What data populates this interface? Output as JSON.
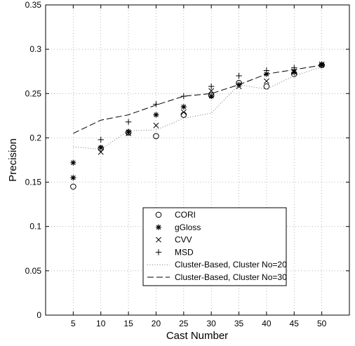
{
  "chart_data": {
    "type": "scatter",
    "title": "",
    "xlabel": "Cast Number",
    "ylabel": "Precision",
    "xlim": [
      0,
      55
    ],
    "ylim": [
      0,
      0.35
    ],
    "x_ticks": [
      5,
      10,
      15,
      20,
      25,
      30,
      35,
      40,
      45,
      50
    ],
    "x_tick_labels": [
      "5",
      "10",
      "15",
      "20",
      "25",
      "30",
      "35",
      "40",
      "45",
      "50"
    ],
    "y_ticks": [
      0,
      0.05,
      0.1,
      0.15,
      0.2,
      0.25,
      0.3,
      0.35
    ],
    "y_tick_labels": [
      "0",
      "0.05",
      "0.1",
      "0.15",
      "0.2",
      "0.25",
      "0.3",
      "0.35"
    ],
    "grid": true,
    "legend_position": "lower-center",
    "x": [
      5,
      10,
      15,
      20,
      25,
      30,
      35,
      40,
      45,
      50
    ],
    "series": [
      {
        "name": "CORI",
        "marker": "circle",
        "values": [
          0.145,
          0.188,
          0.206,
          0.202,
          0.226,
          0.248,
          0.262,
          0.258,
          0.272,
          0.282
        ]
      },
      {
        "name": "gGloss",
        "marker": "star",
        "values": [
          0.172,
          0.189,
          0.207,
          0.226,
          0.235,
          0.247,
          0.26,
          0.272,
          0.274,
          0.282
        ]
      },
      {
        "name": "gGloss",
        "marker": "star",
        "values": [
          0.155,
          null,
          null,
          null,
          null,
          null,
          null,
          null,
          null,
          null
        ]
      },
      {
        "name": "CVV",
        "marker": "x",
        "values": [
          null,
          0.184,
          0.205,
          0.214,
          0.229,
          0.253,
          0.258,
          0.264,
          0.275,
          0.283
        ]
      },
      {
        "name": "MSD",
        "marker": "plus",
        "values": [
          null,
          0.198,
          0.218,
          0.238,
          0.247,
          0.258,
          0.27,
          0.276,
          0.279,
          0.283
        ]
      },
      {
        "name": "Cluster-Based, Cluster No=20",
        "line": "dotted",
        "values": [
          0.19,
          0.187,
          0.208,
          0.209,
          0.222,
          0.228,
          0.26,
          0.255,
          0.27,
          0.28
        ]
      },
      {
        "name": "Cluster-Based, Cluster No=30",
        "line": "dashed",
        "values": [
          0.205,
          0.22,
          0.226,
          0.237,
          0.247,
          0.25,
          0.26,
          0.272,
          0.277,
          0.282
        ]
      }
    ],
    "legend_entries": [
      "CORI",
      "gGloss",
      "CVV",
      "MSD",
      "Cluster-Based, Cluster No=20",
      "Cluster-Based, Cluster No=30"
    ]
  }
}
